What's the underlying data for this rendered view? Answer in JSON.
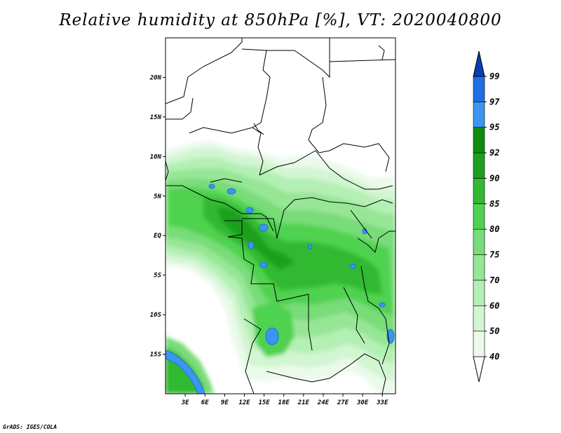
{
  "title": "Relative humidity at 850hPa [%], VT: 2020040800",
  "footer": "GrADS: IGES/COLA",
  "map": {
    "lon_range": [
      0,
      35
    ],
    "lat_range": [
      -20,
      25
    ],
    "lat_ticks": [
      {
        "value": 20,
        "label": "20N"
      },
      {
        "value": 15,
        "label": "15N"
      },
      {
        "value": 10,
        "label": "10N"
      },
      {
        "value": 5,
        "label": "5N"
      },
      {
        "value": 0,
        "label": "EQ"
      },
      {
        "value": -5,
        "label": "5S"
      },
      {
        "value": -10,
        "label": "10S"
      },
      {
        "value": -15,
        "label": "15S"
      }
    ],
    "lon_ticks": [
      {
        "value": 3,
        "label": "3E"
      },
      {
        "value": 6,
        "label": "6E"
      },
      {
        "value": 9,
        "label": "9E"
      },
      {
        "value": 12,
        "label": "12E"
      },
      {
        "value": 15,
        "label": "15E"
      },
      {
        "value": 18,
        "label": "18E"
      },
      {
        "value": 21,
        "label": "21E"
      },
      {
        "value": 24,
        "label": "24E"
      },
      {
        "value": 27,
        "label": "27E"
      },
      {
        "value": 30,
        "label": "30E"
      },
      {
        "value": 33,
        "label": "33E"
      }
    ]
  },
  "colorbar": {
    "levels": [
      {
        "label": "40",
        "color": "#ebfaeb"
      },
      {
        "label": "50",
        "color": "#d2f5d2"
      },
      {
        "label": "60",
        "color": "#b4f0b4"
      },
      {
        "label": "70",
        "color": "#96e696"
      },
      {
        "label": "75",
        "color": "#78dc78"
      },
      {
        "label": "80",
        "color": "#50d250"
      },
      {
        "label": "85",
        "color": "#32b932"
      },
      {
        "label": "90",
        "color": "#1ea01e"
      },
      {
        "label": "92",
        "color": "#0f8c0f"
      },
      {
        "label": "95",
        "color": "#3c96f0"
      },
      {
        "label": "97",
        "color": "#1e6ee6"
      },
      {
        "label": "99",
        "color": "#0a4bc8"
      }
    ],
    "below_color": "#ffffff",
    "above_color": "#0a3cb4"
  }
}
